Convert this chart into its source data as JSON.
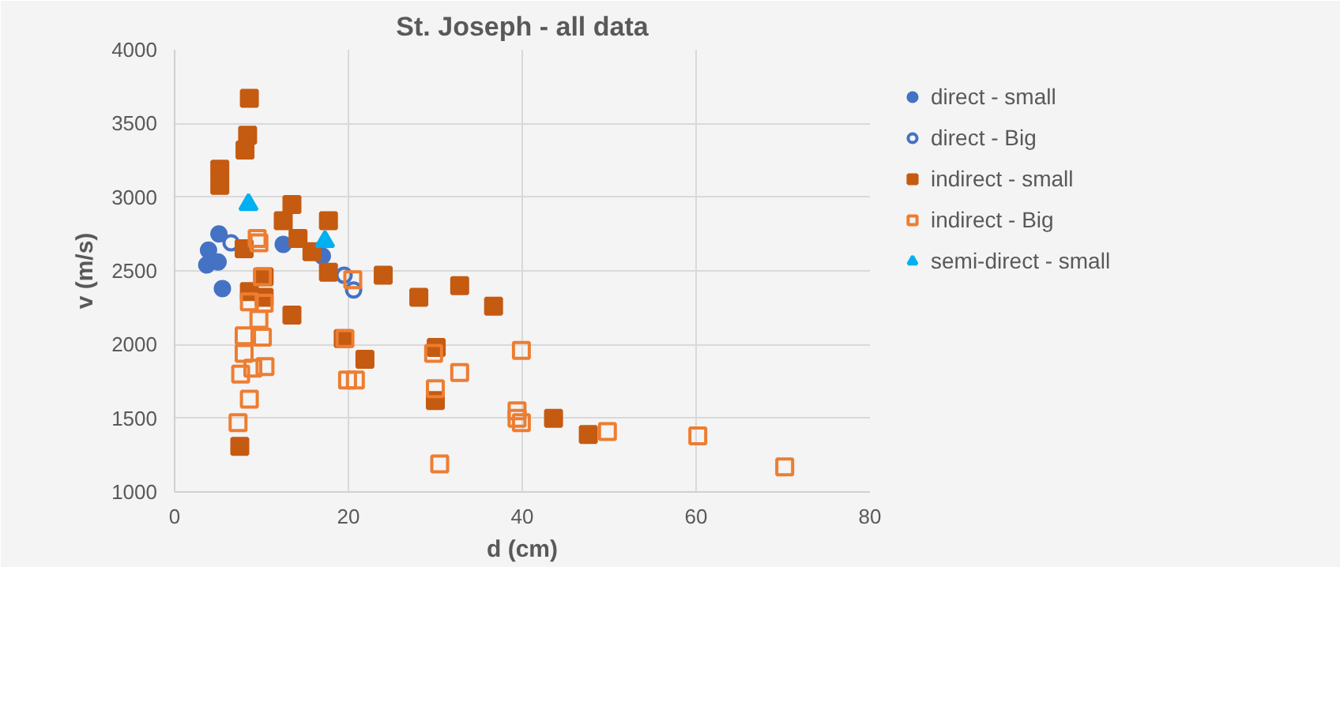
{
  "chart_data": {
    "type": "scatter",
    "title": "St. Joseph - all data",
    "xlabel": "d (cm)",
    "ylabel": "v (m/s)",
    "xlim": [
      0,
      80
    ],
    "ylim": [
      1000,
      4000
    ],
    "xticks": [
      0,
      20,
      40,
      60,
      80
    ],
    "yticks": [
      1000,
      1500,
      2000,
      2500,
      3000,
      3500,
      4000
    ],
    "grid": true,
    "legend": "right",
    "series": [
      {
        "name": "direct - small",
        "color": "#4472c4",
        "marker": "circle",
        "x": [
          3.7,
          5.1,
          5.5,
          5.0,
          3.9,
          12.5,
          17.0
        ],
        "values": [
          2540,
          2750,
          2380,
          2560,
          2640,
          2680,
          2600
        ]
      },
      {
        "name": "direct - Big",
        "color": "#4472c4",
        "marker": "circle open",
        "x": [
          6.5,
          20.6,
          19.5
        ],
        "values": [
          2690,
          2370,
          2470
        ]
      },
      {
        "name": "indirect - small",
        "color": "#c55a11",
        "marker": "square",
        "x": [
          8.6,
          8.4,
          8.1,
          5.2,
          5.2,
          13.5,
          12.5,
          14.2,
          17.7,
          15.8,
          8.0,
          10.3,
          10.3,
          13.5,
          8.6,
          7.5,
          17.7,
          19.4,
          21.9,
          24.0,
          28.1,
          32.8,
          36.7,
          30.1,
          30.0,
          43.6,
          47.6
        ],
        "values": [
          3670,
          3420,
          3320,
          3190,
          3080,
          2950,
          2840,
          2720,
          2840,
          2630,
          2650,
          2460,
          2320,
          2200,
          2360,
          1310,
          2490,
          2040,
          1900,
          2470,
          2320,
          2400,
          2260,
          1980,
          1620,
          1500,
          1390
        ]
      },
      {
        "name": "indirect - Big",
        "color": "#ed7d31",
        "marker": "square open",
        "x": [
          10.1,
          8.6,
          10.3,
          9.7,
          8.0,
          10.1,
          8.0,
          9.0,
          10.4,
          7.6,
          8.6,
          7.3,
          19.6,
          19.9,
          20.8,
          9.5,
          9.7,
          20.5,
          29.8,
          32.8,
          30.0,
          39.9,
          39.4,
          39.9,
          39.4,
          30.5,
          49.8,
          60.2,
          70.2
        ],
        "values": [
          2460,
          2290,
          2280,
          2170,
          2060,
          2050,
          1940,
          1840,
          1850,
          1800,
          1630,
          1470,
          2040,
          1760,
          1760,
          2720,
          2690,
          2440,
          1940,
          1810,
          1700,
          1960,
          1550,
          1470,
          1500,
          1190,
          1410,
          1380,
          1170
        ]
      },
      {
        "name": "semi-direct - small",
        "color": "#00b0f0",
        "marker": "triangle",
        "x": [
          8.5,
          17.3
        ],
        "values": [
          2950,
          2700
        ]
      }
    ]
  }
}
